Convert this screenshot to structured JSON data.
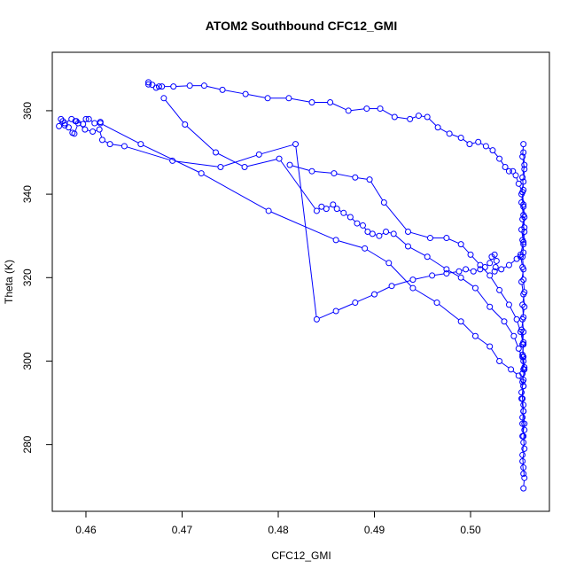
{
  "chart_data": {
    "type": "line",
    "title": "ATOM2 Southbound CFC12_GMI",
    "xlabel": "CFC12_GMI",
    "ylabel": "Theta (K)",
    "xlim": [
      0.4565,
      0.5082
    ],
    "ylim": [
      264.0,
      374.0
    ],
    "x_ticks": [
      0.46,
      0.47,
      0.48,
      0.49,
      0.5
    ],
    "x_tick_labels": [
      "0.46",
      "0.47",
      "0.48",
      "0.49",
      "0.50"
    ],
    "y_ticks": [
      280,
      300,
      320,
      340,
      360
    ],
    "y_tick_labels": [
      "280",
      "300",
      "320",
      "340",
      "360"
    ],
    "grid": false,
    "legend": "none",
    "series": [
      {
        "color": "#0000ff",
        "marker": "open-circle",
        "x": [
          0.5055,
          0.5056,
          0.5055,
          0.5054,
          0.5055,
          0.5056,
          0.5054,
          0.5055,
          0.5053,
          0.5055,
          0.5056,
          0.5054,
          0.5055,
          0.5053,
          0.5055,
          0.5054,
          0.5056,
          0.5055,
          0.5054,
          0.5052,
          0.5055,
          0.5053,
          0.5056,
          0.5055,
          0.5054,
          0.505,
          0.5047,
          0.5044,
          0.504,
          0.5036,
          0.503,
          0.5023,
          0.5016,
          0.5008,
          0.4999,
          0.499,
          0.4978,
          0.4966,
          0.4955,
          0.4946,
          0.4937,
          0.4921,
          0.4906,
          0.4892,
          0.4873,
          0.4854,
          0.4835,
          0.4811,
          0.4789,
          0.4766,
          0.4742,
          0.4723,
          0.4708,
          0.4691,
          0.4679,
          0.4676,
          0.4673,
          0.4669,
          0.4665,
          0.4665
        ],
        "y": [
          269.5,
          272.0,
          274.5,
          277.5,
          280.5,
          283.5,
          286.5,
          289.5,
          292.5,
          295.5,
          298.5,
          301.5,
          304.5,
          307.5,
          310.5,
          313.5,
          316.5,
          319.5,
          322.5,
          325.5,
          328.5,
          331.5,
          334.5,
          337.5,
          340.5,
          342.5,
          344.5,
          345.5,
          345.5,
          346.5,
          348.5,
          350.5,
          351.5,
          352.5,
          352.0,
          353.5,
          354.5,
          356.0,
          358.5,
          358.8,
          358.0,
          358.5,
          360.5,
          360.5,
          360.0,
          362.0,
          362.0,
          363.0,
          363.0,
          364.0,
          365.0,
          366.0,
          366.0,
          365.8,
          365.8,
          365.8,
          365.5,
          366.2,
          366.8,
          366.3
        ]
      },
      {
        "color": "#0000ff",
        "marker": "open-circle",
        "x": [
          0.4681,
          0.4703,
          0.4735,
          0.4765,
          0.4801,
          0.484,
          0.4845,
          0.485,
          0.4857,
          0.4861,
          0.4868,
          0.4875,
          0.4882,
          0.4888,
          0.4893,
          0.4898,
          0.4905,
          0.4912,
          0.492,
          0.4935,
          0.4955,
          0.4975,
          0.499,
          0.5005,
          0.502,
          0.5035,
          0.5045,
          0.505,
          0.5055,
          0.5054,
          0.5055,
          0.5053,
          0.5055,
          0.5054,
          0.5055,
          0.5056,
          0.5054,
          0.5055
        ],
        "y": [
          363.0,
          356.7,
          350.0,
          346.5,
          348.5,
          336.0,
          337.0,
          336.5,
          337.5,
          336.5,
          335.5,
          334.5,
          333.0,
          332.5,
          331.0,
          330.5,
          330.0,
          331.0,
          330.5,
          327.5,
          325.0,
          322.0,
          320.0,
          317.5,
          313.0,
          309.5,
          306.0,
          303.0,
          300.0,
          297.0,
          294.0,
          291.0,
          288.0,
          285.0,
          282.0,
          279.0,
          276.0,
          273.0
        ]
      },
      {
        "color": "#0000ff",
        "marker": "open-circle",
        "x": [
          0.5055,
          0.5056,
          0.5054,
          0.5055,
          0.5053,
          0.5055,
          0.5056,
          0.5054,
          0.5055,
          0.5052,
          0.5048,
          0.504,
          0.5032,
          0.5025,
          0.5026,
          0.5027,
          0.5025,
          0.5022,
          0.502,
          0.5015,
          0.501,
          0.5003,
          0.4995,
          0.4988,
          0.4975,
          0.496,
          0.494,
          0.4918,
          0.49,
          0.488,
          0.486,
          0.484,
          0.4818,
          0.478,
          0.474,
          0.469,
          0.464,
          0.4625,
          0.4617,
          0.4614,
          0.4607,
          0.4599,
          0.4592,
          0.4588,
          0.4586,
          0.4582,
          0.4578,
          0.4576,
          0.4574,
          0.4572,
          0.4578,
          0.4585,
          0.4589,
          0.459,
          0.4597,
          0.46,
          0.4603,
          0.4609,
          0.4615
        ],
        "y": [
          350.0,
          347.0,
          344.0,
          341.0,
          338.0,
          335.0,
          332.0,
          329.0,
          326.0,
          325.0,
          324.5,
          323.0,
          322.0,
          321.5,
          322.5,
          324.0,
          325.5,
          325.0,
          323.5,
          322.5,
          322.0,
          321.5,
          322.0,
          321.5,
          321.0,
          320.5,
          319.5,
          318.0,
          316.0,
          314.0,
          312.0,
          310.0,
          352.0,
          349.5,
          346.5,
          348.0,
          351.5,
          352.0,
          353.0,
          355.5,
          355.0,
          355.5,
          357.0,
          354.5,
          354.7,
          356.0,
          356.5,
          357.5,
          358.0,
          356.3,
          357.0,
          358.0,
          357.5,
          357.5,
          356.8,
          358.0,
          358.0,
          357.0,
          357.3
        ]
      },
      {
        "color": "#0000ff",
        "marker": "open-circle",
        "x": [
          0.4615,
          0.4657,
          0.472,
          0.479,
          0.486,
          0.489,
          0.4915,
          0.494,
          0.4965,
          0.499,
          0.5005,
          0.502,
          0.503,
          0.5042,
          0.505,
          0.5055,
          0.5054,
          0.5055,
          0.5056,
          0.5054
        ],
        "y": [
          357.0,
          352.0,
          345.0,
          336.0,
          329.0,
          327.0,
          323.5,
          317.5,
          314.0,
          309.5,
          306.0,
          303.5,
          300.0,
          298.0,
          296.5,
          294.0,
          291.0,
          288.0,
          285.0,
          282.0
        ]
      },
      {
        "color": "#0000ff",
        "marker": "open-circle",
        "x": [
          0.4812,
          0.4835,
          0.4858,
          0.488,
          0.4895,
          0.491,
          0.4935,
          0.4958,
          0.4975,
          0.499,
          0.5,
          0.501,
          0.502,
          0.503,
          0.504,
          0.5048,
          0.5052,
          0.5055,
          0.5054,
          0.5055
        ],
        "y": [
          347.0,
          345.5,
          345.0,
          344.0,
          343.5,
          338.0,
          331.0,
          329.5,
          329.5,
          328.0,
          325.5,
          323.0,
          320.5,
          317.0,
          313.5,
          310.0,
          307.0,
          304.0,
          301.0,
          298.0
        ]
      },
      {
        "color": "#0000ff",
        "marker": "open-circle",
        "x": [
          0.5055,
          0.5054,
          0.5056,
          0.5055,
          0.5053,
          0.5055,
          0.5054,
          0.5056,
          0.5055,
          0.5054,
          0.5055,
          0.5053,
          0.5055,
          0.5056,
          0.5054,
          0.5055,
          0.5054,
          0.5055,
          0.5056,
          0.5054
        ],
        "y": [
          352.0,
          349.0,
          346.0,
          343.0,
          340.0,
          337.0,
          334.0,
          331.0,
          328.0,
          325.0,
          322.0,
          319.0,
          316.0,
          313.0,
          310.0,
          307.0,
          304.0,
          301.0,
          298.0,
          295.0
        ]
      }
    ]
  }
}
